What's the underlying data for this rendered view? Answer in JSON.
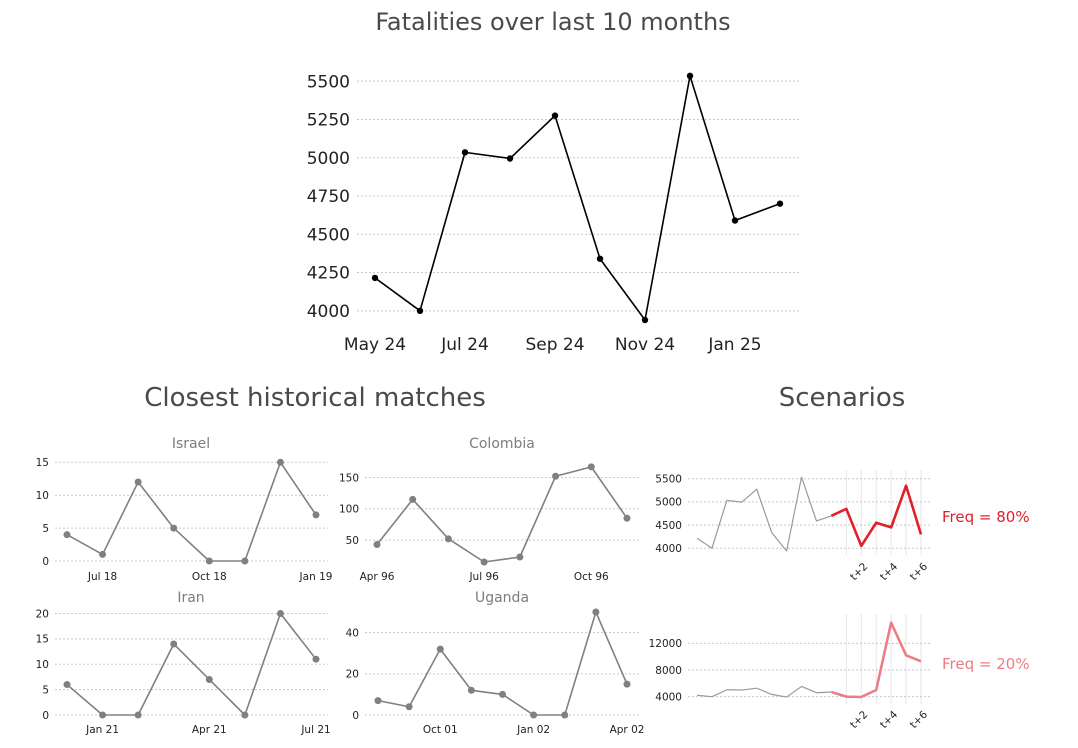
{
  "section_titles": {
    "historical": "Closest historical matches",
    "scenarios": "Scenarios"
  },
  "colors": {
    "main_line": "#000000",
    "match_line": "#808080",
    "scenario_history": "#9a9a9a",
    "scenario_1": "#e0202b",
    "scenario_2": "#ec7d84",
    "title": "#4a4a4a"
  },
  "chart_data": [
    {
      "id": "main",
      "type": "line",
      "title": "Fatalities over last 10 months",
      "x": [
        0,
        1,
        2,
        3,
        4,
        5,
        6,
        7,
        8,
        9
      ],
      "values": [
        4215,
        4000,
        5035,
        4995,
        5275,
        4340,
        3940,
        5535,
        4590,
        4700
      ],
      "xticks": [
        {
          "at": 0,
          "label": "May 24"
        },
        {
          "at": 2,
          "label": "Jul 24"
        },
        {
          "at": 4,
          "label": "Sep 24"
        },
        {
          "at": 6,
          "label": "Nov 24"
        },
        {
          "at": 8,
          "label": "Jan 25"
        }
      ],
      "yticks": [
        4000,
        4250,
        4500,
        4750,
        5000,
        5250,
        5500
      ],
      "ylim": [
        3940,
        5560
      ],
      "grid": true
    },
    {
      "id": "israel",
      "type": "line",
      "title": "Israel",
      "x": [
        0,
        1,
        2,
        3,
        4,
        5,
        6,
        7
      ],
      "values": [
        4,
        1,
        12,
        5,
        0,
        0,
        15,
        7
      ],
      "xticks": [
        {
          "at": 1,
          "label": "Jul 18"
        },
        {
          "at": 4,
          "label": "Oct 18"
        },
        {
          "at": 7,
          "label": "Jan 19"
        }
      ],
      "yticks": [
        0,
        5,
        10,
        15
      ],
      "ylim": [
        0,
        15.5
      ],
      "grid": true
    },
    {
      "id": "colombia",
      "type": "line",
      "title": "Colombia",
      "x": [
        0,
        1,
        2,
        3,
        4,
        5,
        6,
        7
      ],
      "values": [
        43,
        115,
        52,
        15,
        23,
        152,
        167,
        85
      ],
      "xticks": [
        {
          "at": 0,
          "label": "Apr 96"
        },
        {
          "at": 3,
          "label": "Jul 96"
        },
        {
          "at": 6,
          "label": "Oct 96"
        }
      ],
      "yticks": [
        50,
        100,
        150
      ],
      "ylim": [
        15,
        170
      ],
      "grid": true
    },
    {
      "id": "iran",
      "type": "line",
      "title": "Iran",
      "x": [
        0,
        1,
        2,
        3,
        4,
        5,
        6,
        7
      ],
      "values": [
        6,
        0,
        0,
        14,
        7,
        0,
        20,
        11
      ],
      "xticks": [
        {
          "at": 1,
          "label": "Jan 21"
        },
        {
          "at": 4,
          "label": "Apr 21"
        },
        {
          "at": 7,
          "label": "Jul 21"
        }
      ],
      "yticks": [
        0,
        5,
        10,
        15,
        20
      ],
      "ylim": [
        0,
        20.5
      ],
      "grid": true
    },
    {
      "id": "uganda",
      "type": "line",
      "title": "Uganda",
      "x": [
        0,
        1,
        2,
        3,
        4,
        5,
        6,
        7,
        8
      ],
      "values": [
        7,
        4,
        32,
        12,
        10,
        0,
        0,
        50,
        15
      ],
      "xticks": [
        {
          "at": 2,
          "label": "Oct 01"
        },
        {
          "at": 5,
          "label": "Jan 02"
        },
        {
          "at": 8,
          "label": "Apr 02"
        }
      ],
      "yticks": [
        0,
        20,
        40
      ],
      "ylim": [
        0,
        51
      ],
      "grid": true
    },
    {
      "id": "scenario1",
      "type": "line",
      "title": "",
      "x": [
        0,
        1,
        2,
        3,
        4,
        5,
        6,
        7,
        8,
        9,
        10,
        11,
        12,
        13,
        14,
        15
      ],
      "history": [
        4215,
        4000,
        5035,
        4995,
        5275,
        4340,
        3940,
        5535,
        4590,
        4700
      ],
      "forecast": [
        4700,
        4850,
        4050,
        4550,
        4450,
        5350,
        4300
      ],
      "forecast_start": 9,
      "xticks": [
        {
          "at": 11,
          "label": "t+2"
        },
        {
          "at": 13,
          "label": "t+4"
        },
        {
          "at": 15,
          "label": "t+6"
        }
      ],
      "yticks": [
        4000,
        4500,
        5000,
        5500
      ],
      "ylim": [
        3940,
        5560
      ],
      "annotation": "Freq = 80%",
      "grid": true
    },
    {
      "id": "scenario2",
      "type": "line",
      "title": "",
      "x": [
        0,
        1,
        2,
        3,
        4,
        5,
        6,
        7,
        8,
        9,
        10,
        11,
        12,
        13,
        14,
        15
      ],
      "history": [
        4215,
        4000,
        5035,
        4995,
        5275,
        4340,
        3940,
        5535,
        4590,
        4700
      ],
      "forecast": [
        4700,
        4000,
        3950,
        5000,
        15100,
        10200,
        9300
      ],
      "forecast_start": 9,
      "xticks": [
        {
          "at": 11,
          "label": "t+2"
        },
        {
          "at": 13,
          "label": "t+4"
        },
        {
          "at": 15,
          "label": "t+6"
        }
      ],
      "yticks": [
        4000,
        8000,
        12000
      ],
      "ylim": [
        3500,
        15500
      ],
      "annotation": "Freq = 20%",
      "grid": true
    }
  ]
}
